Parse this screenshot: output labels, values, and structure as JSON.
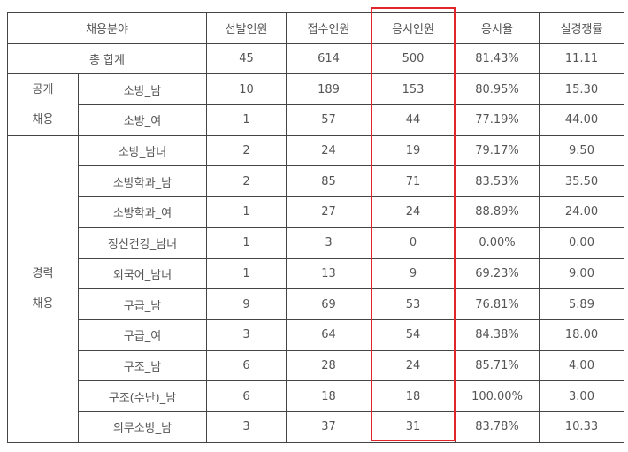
{
  "table": {
    "header": [
      "채용분야",
      "선발인원",
      "접수인원",
      "응시인원",
      "응시율",
      "실경쟁률"
    ],
    "total": {
      "label": "총 합계",
      "cells": [
        "45",
        "614",
        "500",
        "81.43%",
        "11.11"
      ]
    },
    "groups": [
      {
        "label": [
          "공개",
          "채용"
        ],
        "rows": [
          {
            "field": "소방_남",
            "cells": [
              "10",
              "189",
              "153",
              "80.95%",
              "15.30"
            ]
          },
          {
            "field": "소방_여",
            "cells": [
              "1",
              "57",
              "44",
              "77.19%",
              "44.00"
            ]
          }
        ]
      },
      {
        "label": [
          "경력",
          "채용"
        ],
        "rows": [
          {
            "field": "소방_남녀",
            "cells": [
              "2",
              "24",
              "19",
              "79.17%",
              "9.50"
            ]
          },
          {
            "field": "소방학과_남",
            "cells": [
              "2",
              "85",
              "71",
              "83.53%",
              "35.50"
            ]
          },
          {
            "field": "소방학과_여",
            "cells": [
              "1",
              "27",
              "24",
              "88.89%",
              "24.00"
            ]
          },
          {
            "field": "정신건강_남녀",
            "cells": [
              "1",
              "3",
              "0",
              "0.00%",
              "0.00"
            ]
          },
          {
            "field": "외국어_남녀",
            "cells": [
              "1",
              "13",
              "9",
              "69.23%",
              "9.00"
            ]
          },
          {
            "field": "구급_남",
            "cells": [
              "9",
              "69",
              "53",
              "76.81%",
              "5.89"
            ]
          },
          {
            "field": "구급_여",
            "cells": [
              "3",
              "64",
              "54",
              "84.38%",
              "18.00"
            ]
          },
          {
            "field": "구조_남",
            "cells": [
              "6",
              "28",
              "24",
              "85.71%",
              "4.00"
            ]
          },
          {
            "field": "구조(수난)_남",
            "cells": [
              "6",
              "18",
              "18",
              "100.00%",
              "3.00"
            ]
          },
          {
            "field": "의무소방_남",
            "cells": [
              "3",
              "37",
              "31",
              "83.78%",
              "10.33"
            ]
          }
        ]
      }
    ]
  }
}
